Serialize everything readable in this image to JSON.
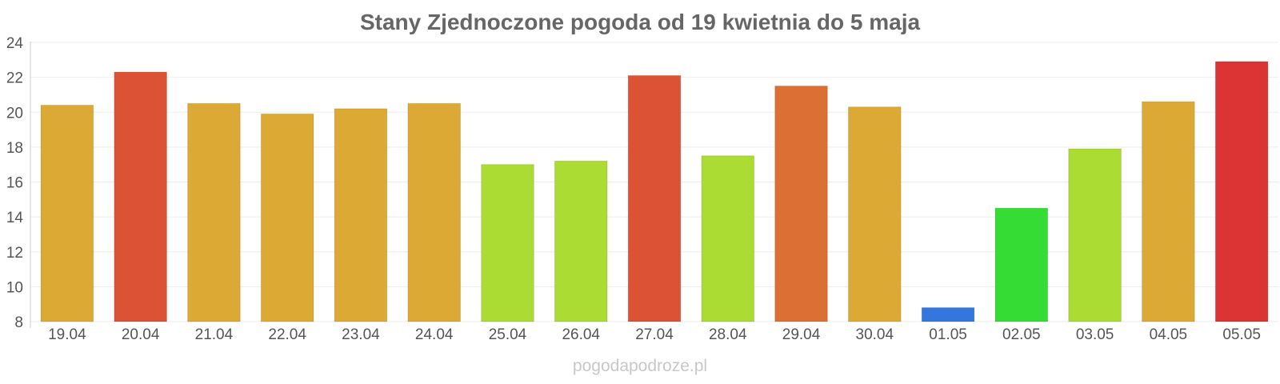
{
  "chart_data": {
    "type": "bar",
    "title": "Stany Zjednoczone pogoda od 19 kwietnia do 5 maja",
    "xlabel": "",
    "ylabel": "",
    "ylim": [
      8,
      24
    ],
    "yticks": [
      8,
      10,
      12,
      14,
      16,
      18,
      20,
      22,
      24
    ],
    "grid": true,
    "categories": [
      "19.04",
      "20.04",
      "21.04",
      "22.04",
      "23.04",
      "24.04",
      "25.04",
      "26.04",
      "27.04",
      "28.04",
      "29.04",
      "30.04",
      "01.05",
      "02.05",
      "03.05",
      "04.05",
      "05.05"
    ],
    "values": [
      20.4,
      22.3,
      20.5,
      19.9,
      20.2,
      20.5,
      17.0,
      17.2,
      22.1,
      17.5,
      21.5,
      20.3,
      8.8,
      14.5,
      17.9,
      20.6,
      22.9
    ],
    "colors": [
      "#dcaa34",
      "#dc5234",
      "#dcaa34",
      "#dcaa34",
      "#dcaa34",
      "#dcaa34",
      "#abdc34",
      "#abdc34",
      "#dc5234",
      "#abdc34",
      "#dc6f34",
      "#dcaa34",
      "#3477dc",
      "#34dc34",
      "#abdc34",
      "#dcaa34",
      "#dc3434"
    ]
  },
  "watermark": "pogodapodroze.pl"
}
